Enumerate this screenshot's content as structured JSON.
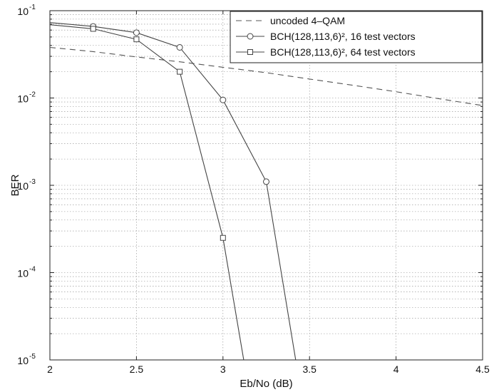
{
  "chart_data": {
    "type": "line",
    "xlabel": "Eb/No (dB)",
    "ylabel": "BER",
    "xlim": [
      2,
      4.5
    ],
    "ylim": [
      1e-05,
      0.1
    ],
    "yscale": "log",
    "grid": true,
    "legend_position": "top-right",
    "x_ticks": [
      {
        "value": 2,
        "label": "2"
      },
      {
        "value": 2.5,
        "label": "2.5"
      },
      {
        "value": 3,
        "label": "3"
      },
      {
        "value": 3.5,
        "label": "3.5"
      },
      {
        "value": 4,
        "label": "4"
      },
      {
        "value": 4.5,
        "label": "4.5"
      }
    ],
    "y_ticks": [
      {
        "value": 0.1,
        "base": "10",
        "exp": "-1"
      },
      {
        "value": 0.01,
        "base": "10",
        "exp": "-2"
      },
      {
        "value": 0.001,
        "base": "10",
        "exp": "-3"
      },
      {
        "value": 0.0001,
        "base": "10",
        "exp": "-4"
      },
      {
        "value": 1e-05,
        "base": "10",
        "exp": "-5"
      }
    ],
    "series": [
      {
        "name": "uncoded 4–QAM",
        "style": "dashed",
        "marker": "none",
        "color": "#555555",
        "x": [
          2.0,
          2.25,
          2.5,
          2.75,
          3.0,
          3.25,
          3.5,
          3.75,
          4.0,
          4.25,
          4.5
        ],
        "y": [
          0.038,
          0.034,
          0.0295,
          0.026,
          0.0225,
          0.0195,
          0.0165,
          0.014,
          0.0118,
          0.0098,
          0.0082
        ]
      },
      {
        "name": "BCH(128,113,6)², 16 test vectors",
        "style": "solid",
        "marker": "circle",
        "color": "#444444",
        "x": [
          2.0,
          2.25,
          2.5,
          2.75,
          3.0,
          3.25,
          3.42
        ],
        "y": [
          0.073,
          0.066,
          0.056,
          0.038,
          0.0095,
          0.0011,
          1e-05
        ],
        "marker_points": [
          1,
          2,
          3,
          4,
          5
        ]
      },
      {
        "name": "BCH(128,113,6)², 64 test vectors",
        "style": "solid",
        "marker": "square",
        "color": "#444444",
        "x": [
          2.0,
          2.25,
          2.5,
          2.75,
          3.0,
          3.12
        ],
        "y": [
          0.069,
          0.062,
          0.047,
          0.02,
          0.00025,
          1e-05
        ],
        "marker_points": [
          1,
          2,
          3,
          4
        ]
      }
    ]
  }
}
